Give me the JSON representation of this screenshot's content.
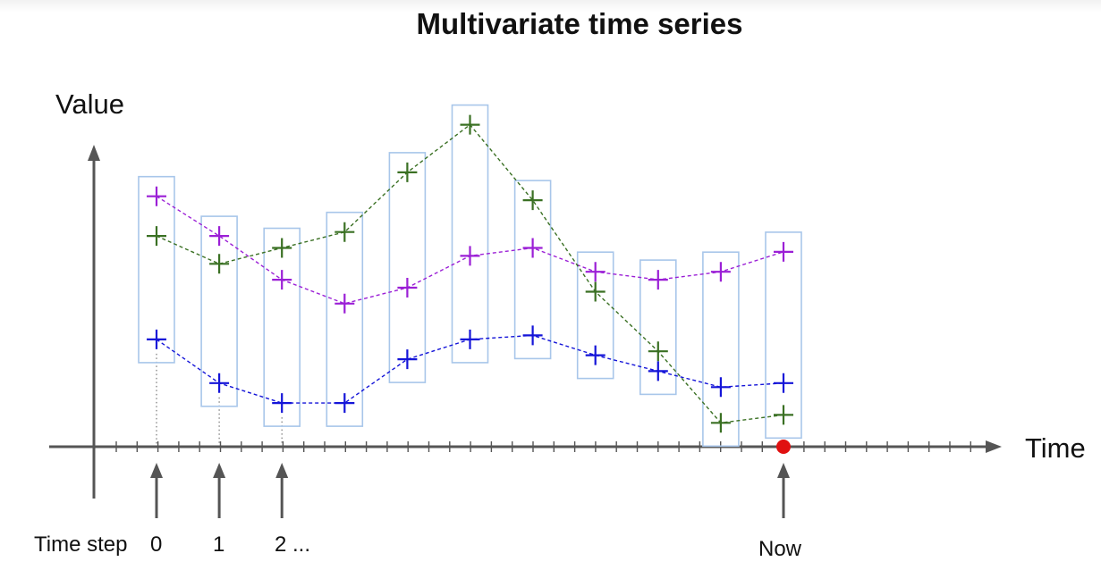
{
  "title": "Multivariate time series",
  "y_axis_label": "Value",
  "x_axis_label": "Time",
  "step_labels": {
    "prefix": "Time step",
    "step0": "0",
    "step1": "1",
    "step2": "2 ...",
    "now": "Now"
  },
  "colors": {
    "purple": "#9b1fd6",
    "green": "#3a7023",
    "blue": "#1414d8",
    "window_box": "#a8c6ea",
    "axis": "#555555",
    "now_marker": "#e01010"
  },
  "chart_data": {
    "type": "line",
    "x": [
      0,
      1,
      2,
      3,
      4,
      5,
      6,
      7,
      8,
      9,
      10
    ],
    "series": [
      {
        "color": "purple",
        "values": [
          6.3,
          5.3,
          4.2,
          3.6,
          4.0,
          4.8,
          5.0,
          4.4,
          4.2,
          4.4,
          4.9
        ]
      },
      {
        "color": "green",
        "values": [
          5.3,
          4.6,
          5.0,
          5.4,
          6.9,
          8.1,
          6.2,
          3.9,
          2.4,
          0.6,
          0.8
        ]
      },
      {
        "color": "blue",
        "values": [
          2.7,
          1.6,
          1.1,
          1.1,
          2.2,
          2.7,
          2.8,
          2.3,
          1.9,
          1.5,
          1.6
        ]
      }
    ],
    "now_step": 10,
    "marked_steps": [
      0,
      1,
      2
    ]
  }
}
